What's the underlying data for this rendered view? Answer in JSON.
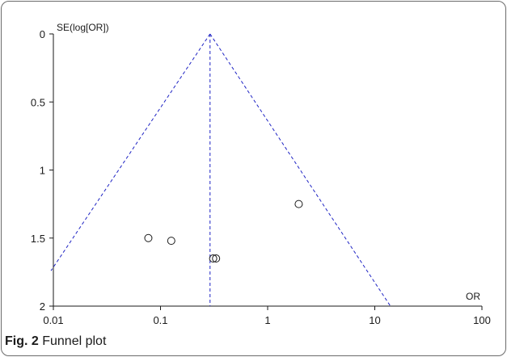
{
  "chart_data": {
    "type": "scatter",
    "title": "",
    "caption": {
      "label": "Fig. 2",
      "text": "Funnel plot"
    },
    "xlabel": "OR",
    "ylabel": "SE(log[OR])",
    "x_scale": "log",
    "y_inverted": true,
    "xlim": [
      0.01,
      100
    ],
    "ylim": [
      0,
      2
    ],
    "x_ticks": [
      0.01,
      0.1,
      1,
      10,
      100
    ],
    "x_tick_labels": [
      "0.01",
      "0.1",
      "1",
      "10",
      "100"
    ],
    "y_ticks": [
      0,
      0.5,
      1,
      1.5,
      2
    ],
    "y_tick_labels": [
      "0",
      "0.5",
      "1",
      "1.5",
      "2"
    ],
    "grid": false,
    "points": [
      {
        "x": 0.077,
        "y": 1.5
      },
      {
        "x": 0.126,
        "y": 1.52
      },
      {
        "x": 0.31,
        "y": 1.65
      },
      {
        "x": 0.33,
        "y": 1.65
      },
      {
        "x": 1.95,
        "y": 1.25
      }
    ],
    "pooled_estimate": 0.29,
    "reference_line": {
      "x": 0.29,
      "style": "dashed",
      "color": "#1f24c4"
    },
    "funnel_limits": {
      "apex": {
        "x": 0.29,
        "y": 0
      },
      "left": [
        {
          "x": 0.29,
          "y": 0
        },
        {
          "x": 0.0095,
          "y": 1.74
        }
      ],
      "right": [
        {
          "x": 0.29,
          "y": 0
        },
        {
          "x": 14,
          "y": 2
        }
      ],
      "style": "dashed",
      "color": "#1f24c4"
    },
    "marker": "open-circle"
  }
}
